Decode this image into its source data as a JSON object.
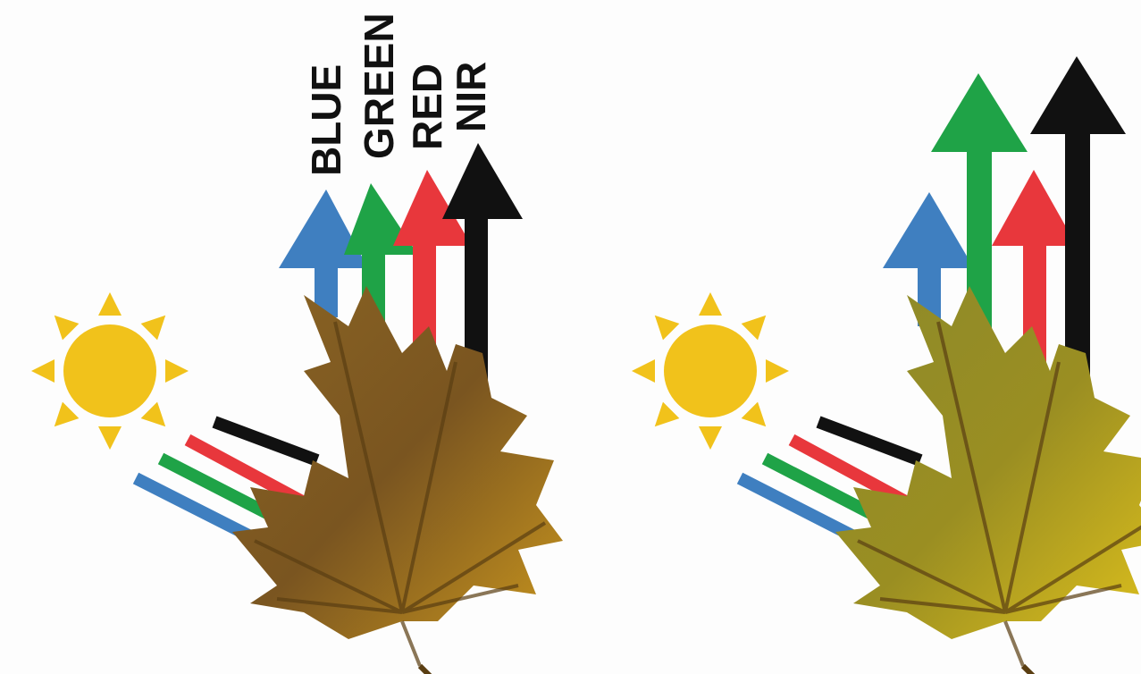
{
  "band_labels": [
    "BLUE",
    "GREEN",
    "RED",
    "NIR"
  ]
}
